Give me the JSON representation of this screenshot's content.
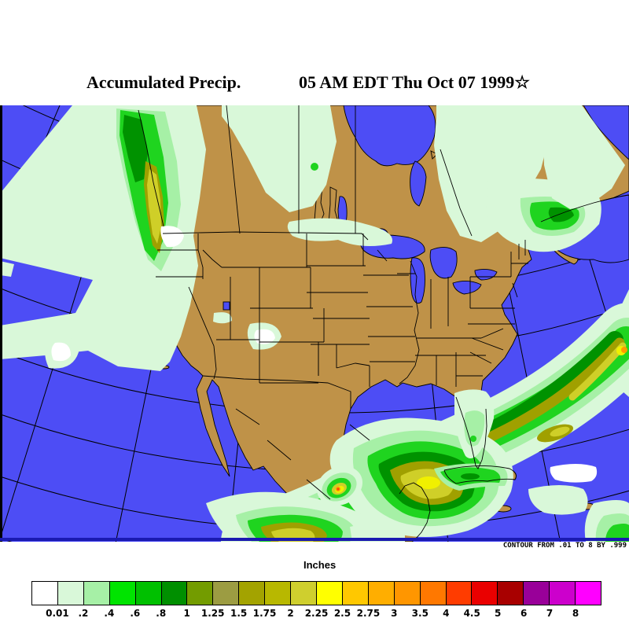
{
  "title": {
    "product": "Accumulated Precip.",
    "datetime": "05 AM EDT Thu Oct 07 1999☆"
  },
  "map": {
    "note": "CONTOUR FROM .01 TO 8 BY .999",
    "colors": {
      "ocean": "#4d4df5",
      "land": "#bf9248",
      "line": "#000000",
      "frame_bottom": "#1a1ab0",
      "precip": {
        "white": "#ffffff",
        "pale": "#d9f8d9",
        "light": "#a6f0a6",
        "green": "#1fd41f",
        "dgreen": "#009200",
        "olive": "#a0a000",
        "ygreen": "#cfcf28",
        "yellow": "#f0f000",
        "gold": "#ffc800",
        "orange": "#ff9b00",
        "rorange": "#ff4000"
      }
    }
  },
  "legend": {
    "title": "Inches",
    "boundary_labels": [
      "0.01",
      ".2",
      ".4",
      ".6",
      ".8",
      "1",
      "1.25",
      "1.5",
      "1.75",
      "2",
      "2.25",
      "2.5",
      "2.75",
      "3",
      "3.5",
      "4",
      "4.5",
      "5",
      "6",
      "7",
      "8"
    ],
    "cell_colors": [
      "#ffffff",
      "#d9f8d9",
      "#a6f0a6",
      "#00e400",
      "#00c000",
      "#008f00",
      "#739c00",
      "#9c9c42",
      "#a3a300",
      "#b8b800",
      "#cfcf2e",
      "#ffff00",
      "#ffc800",
      "#ffae00",
      "#ff9600",
      "#ff7800",
      "#ff3c00",
      "#ea0000",
      "#a80000",
      "#990099",
      "#cc00cc",
      "#ff00ff"
    ]
  },
  "chart_data": {
    "type": "heatmap",
    "title": "Accumulated Precip.",
    "valid_time": "05 AM EDT Thu Oct 07 1999",
    "units": "Inches",
    "scale_thresholds": [
      0.01,
      0.2,
      0.4,
      0.6,
      0.8,
      1,
      1.25,
      1.5,
      1.75,
      2,
      2.25,
      2.5,
      2.75,
      3,
      3.5,
      4,
      4.5,
      5,
      6,
      7,
      8
    ],
    "scale_colors": [
      "#ffffff",
      "#d9f8d9",
      "#a6f0a6",
      "#00e400",
      "#00c000",
      "#008f00",
      "#739c00",
      "#9c9c42",
      "#a3a300",
      "#b8b800",
      "#cfcf2e",
      "#ffff00",
      "#ffc800",
      "#ffae00",
      "#ff9600",
      "#ff7800",
      "#ff3c00",
      "#ea0000",
      "#a80000",
      "#990099",
      "#cc00cc",
      "#ff00ff"
    ],
    "contour_note": "CONTOUR FROM .01 TO 8 BY .999",
    "features": [
      {
        "region": "British Columbia / Alaska panhandle coast",
        "max_in": 2.25
      },
      {
        "region": "Quebec / Gulf of St. Lawrence",
        "max_in": 0.8
      },
      {
        "region": "Western Atlantic curved band",
        "max_in": 3.5
      },
      {
        "region": "Gulf of Mexico (south of Louisiana)",
        "max_in": 2.5
      },
      {
        "region": "Mexico east coast (Veracruz)",
        "max_in": 3.5
      },
      {
        "region": "Southern Mexico / Central America",
        "max_in": 2.5
      }
    ]
  }
}
